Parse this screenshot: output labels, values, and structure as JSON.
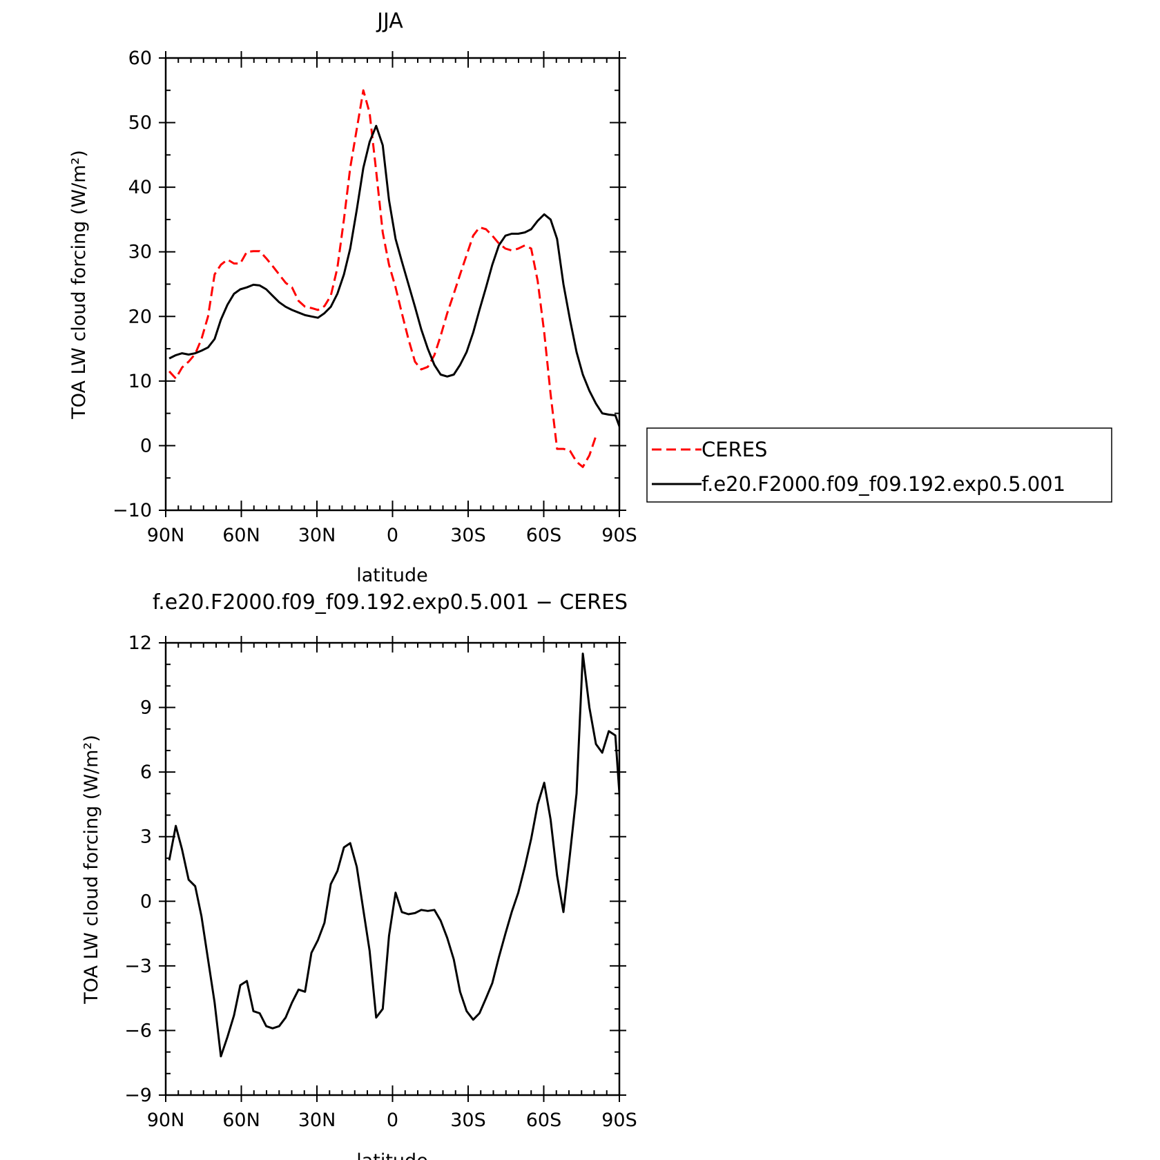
{
  "chart_data": [
    {
      "type": "line",
      "title": "JJA",
      "xlabel": "latitude",
      "ylabel": "TOA LW cloud forcing (W/m²)",
      "xlim": [
        90,
        -90
      ],
      "ylim": [
        -10,
        60
      ],
      "xticks": [
        {
          "value": 90,
          "label": "90N"
        },
        {
          "value": 60,
          "label": "60N"
        },
        {
          "value": 30,
          "label": "30N"
        },
        {
          "value": 0,
          "label": "0"
        },
        {
          "value": -30,
          "label": "30S"
        },
        {
          "value": -60,
          "label": "60S"
        },
        {
          "value": -90,
          "label": "90S"
        }
      ],
      "yticks": [
        -10,
        0,
        10,
        20,
        30,
        40,
        50,
        60
      ],
      "legend": "right",
      "series": [
        {
          "name": "CERES",
          "color": "#ff0000",
          "dash": true,
          "points": [
            [
              88.6,
              11.5
            ],
            [
              86.0,
              10.4
            ],
            [
              83.5,
              12.1
            ],
            [
              80.9,
              13.0
            ],
            [
              78.3,
              14.2
            ],
            [
              75.8,
              16.5
            ],
            [
              73.2,
              20.0
            ],
            [
              70.6,
              26.5
            ],
            [
              68.1,
              28.0
            ],
            [
              65.5,
              28.8
            ],
            [
              62.9,
              28.2
            ],
            [
              60.4,
              28.2
            ],
            [
              57.8,
              30.0
            ],
            [
              55.2,
              30.1
            ],
            [
              52.7,
              30.1
            ],
            [
              50.1,
              29.0
            ],
            [
              47.6,
              27.8
            ],
            [
              45.0,
              26.5
            ],
            [
              42.4,
              25.2
            ],
            [
              39.9,
              24.5
            ],
            [
              37.3,
              22.4
            ],
            [
              34.7,
              21.5
            ],
            [
              32.2,
              21.3
            ],
            [
              29.6,
              21.0
            ],
            [
              27.0,
              21.6
            ],
            [
              24.5,
              23.2
            ],
            [
              21.9,
              27.5
            ],
            [
              19.3,
              35.0
            ],
            [
              16.8,
              43.0
            ],
            [
              14.2,
              49.0
            ],
            [
              11.6,
              55.0
            ],
            [
              9.1,
              51.5
            ],
            [
              6.5,
              42.5
            ],
            [
              3.9,
              33.0
            ],
            [
              1.4,
              28.0
            ],
            [
              -1.2,
              24.5
            ],
            [
              -3.7,
              20.5
            ],
            [
              -6.3,
              16.5
            ],
            [
              -8.9,
              13.0
            ],
            [
              -11.4,
              11.8
            ],
            [
              -14.0,
              12.2
            ],
            [
              -16.6,
              14.0
            ],
            [
              -19.1,
              17.0
            ],
            [
              -21.7,
              20.5
            ],
            [
              -24.3,
              23.5
            ],
            [
              -26.8,
              26.5
            ],
            [
              -29.4,
              29.5
            ],
            [
              -32.0,
              32.5
            ],
            [
              -34.5,
              33.8
            ],
            [
              -37.1,
              33.5
            ],
            [
              -39.6,
              32.5
            ],
            [
              -42.2,
              31.3
            ],
            [
              -44.8,
              30.5
            ],
            [
              -47.3,
              30.2
            ],
            [
              -49.9,
              30.5
            ],
            [
              -52.5,
              31.0
            ],
            [
              -55.0,
              30.5
            ],
            [
              -57.6,
              25.5
            ],
            [
              -60.2,
              17.5
            ],
            [
              -62.7,
              8.0
            ],
            [
              -65.3,
              -0.5
            ],
            [
              -67.8,
              -0.5
            ],
            [
              -70.4,
              -0.8
            ],
            [
              -73.0,
              -2.5
            ],
            [
              -75.5,
              -3.3
            ],
            [
              -78.1,
              -1.5
            ],
            [
              -80.7,
              1.5
            ]
          ]
        },
        {
          "name": "f.e20.F2000.f09_f09.192.exp0.5.001",
          "color": "#000000",
          "dash": false,
          "points": [
            [
              88.6,
              13.5
            ],
            [
              86.0,
              14.0
            ],
            [
              83.5,
              14.3
            ],
            [
              80.9,
              14.1
            ],
            [
              78.3,
              14.3
            ],
            [
              75.8,
              14.7
            ],
            [
              73.2,
              15.2
            ],
            [
              70.6,
              16.5
            ],
            [
              68.1,
              19.5
            ],
            [
              65.5,
              21.8
            ],
            [
              62.9,
              23.5
            ],
            [
              60.4,
              24.2
            ],
            [
              57.8,
              24.5
            ],
            [
              55.2,
              24.9
            ],
            [
              52.7,
              24.8
            ],
            [
              50.1,
              24.2
            ],
            [
              47.6,
              23.2
            ],
            [
              45.0,
              22.2
            ],
            [
              42.4,
              21.5
            ],
            [
              39.9,
              21.0
            ],
            [
              37.3,
              20.6
            ],
            [
              34.7,
              20.2
            ],
            [
              32.2,
              20.0
            ],
            [
              29.6,
              19.8
            ],
            [
              27.0,
              20.5
            ],
            [
              24.5,
              21.5
            ],
            [
              21.9,
              23.5
            ],
            [
              19.3,
              26.5
            ],
            [
              16.8,
              30.5
            ],
            [
              14.2,
              36.5
            ],
            [
              11.6,
              43.0
            ],
            [
              9.1,
              47.0
            ],
            [
              6.5,
              49.5
            ],
            [
              3.9,
              46.5
            ],
            [
              1.4,
              38.0
            ],
            [
              -1.2,
              32.0
            ],
            [
              -3.7,
              28.5
            ],
            [
              -6.3,
              25.0
            ],
            [
              -8.9,
              21.5
            ],
            [
              -11.4,
              18.0
            ],
            [
              -14.0,
              15.0
            ],
            [
              -16.6,
              12.5
            ],
            [
              -19.1,
              11.0
            ],
            [
              -21.7,
              10.7
            ],
            [
              -24.3,
              11.0
            ],
            [
              -26.8,
              12.5
            ],
            [
              -29.4,
              14.5
            ],
            [
              -32.0,
              17.5
            ],
            [
              -34.5,
              21.0
            ],
            [
              -37.1,
              24.5
            ],
            [
              -39.6,
              28.0
            ],
            [
              -42.2,
              31.0
            ],
            [
              -44.8,
              32.5
            ],
            [
              -47.3,
              32.8
            ],
            [
              -49.9,
              32.8
            ],
            [
              -52.5,
              33.0
            ],
            [
              -55.0,
              33.5
            ],
            [
              -57.6,
              34.8
            ],
            [
              -60.2,
              35.8
            ],
            [
              -62.7,
              35.0
            ],
            [
              -65.3,
              32.0
            ],
            [
              -67.8,
              25.0
            ],
            [
              -70.4,
              19.5
            ],
            [
              -73.0,
              14.5
            ],
            [
              -75.5,
              11.0
            ],
            [
              -78.1,
              8.5
            ],
            [
              -80.7,
              6.5
            ],
            [
              -83.2,
              5.0
            ],
            [
              -85.8,
              4.8
            ],
            [
              -88.4,
              4.7
            ],
            [
              -90.0,
              3.0
            ],
            [
              -92.0,
              1.5
            ]
          ]
        }
      ]
    },
    {
      "type": "line",
      "title": "f.e20.F2000.f09_f09.192.exp0.5.001 − CERES",
      "xlabel": "latitude",
      "ylabel": "TOA LW cloud forcing (W/m²)",
      "xlim": [
        90,
        -90
      ],
      "ylim": [
        -9,
        12
      ],
      "xticks": [
        {
          "value": 90,
          "label": "90N"
        },
        {
          "value": 60,
          "label": "60N"
        },
        {
          "value": 30,
          "label": "30N"
        },
        {
          "value": 0,
          "label": "0"
        },
        {
          "value": -30,
          "label": "30S"
        },
        {
          "value": -60,
          "label": "60S"
        },
        {
          "value": -90,
          "label": "90S"
        }
      ],
      "yticks": [
        -9,
        -6,
        -3,
        0,
        3,
        6,
        9,
        12
      ],
      "series": [
        {
          "color": "#000000",
          "dash": false,
          "points": [
            [
              88.6,
              1.9
            ],
            [
              86.0,
              3.5
            ],
            [
              83.5,
              2.4
            ],
            [
              80.9,
              1.0
            ],
            [
              78.3,
              0.7
            ],
            [
              75.8,
              -0.7
            ],
            [
              73.2,
              -2.7
            ],
            [
              70.6,
              -4.7
            ],
            [
              68.1,
              -7.2
            ],
            [
              65.5,
              -6.3
            ],
            [
              62.9,
              -5.3
            ],
            [
              60.4,
              -3.9
            ],
            [
              57.8,
              -3.7
            ],
            [
              55.2,
              -5.1
            ],
            [
              52.7,
              -5.2
            ],
            [
              50.1,
              -5.8
            ],
            [
              47.6,
              -5.9
            ],
            [
              45.0,
              -5.8
            ],
            [
              42.4,
              -5.4
            ],
            [
              39.9,
              -4.7
            ],
            [
              37.3,
              -4.1
            ],
            [
              34.7,
              -4.2
            ],
            [
              32.2,
              -2.4
            ],
            [
              29.6,
              -1.8
            ],
            [
              27.0,
              -1.0
            ],
            [
              24.5,
              0.8
            ],
            [
              21.9,
              1.4
            ],
            [
              19.3,
              2.5
            ],
            [
              16.8,
              2.7
            ],
            [
              14.2,
              1.6
            ],
            [
              11.6,
              -0.4
            ],
            [
              9.1,
              -2.3
            ],
            [
              6.5,
              -5.4
            ],
            [
              3.9,
              -5.0
            ],
            [
              1.4,
              -1.6
            ],
            [
              -1.2,
              0.4
            ],
            [
              -3.7,
              -0.5
            ],
            [
              -6.3,
              -0.6
            ],
            [
              -8.9,
              -0.55
            ],
            [
              -11.4,
              -0.4
            ],
            [
              -14.0,
              -0.45
            ],
            [
              -16.6,
              -0.4
            ],
            [
              -19.1,
              -0.9
            ],
            [
              -21.7,
              -1.7
            ],
            [
              -24.3,
              -2.7
            ],
            [
              -26.8,
              -4.2
            ],
            [
              -29.4,
              -5.1
            ],
            [
              -32.0,
              -5.5
            ],
            [
              -34.5,
              -5.2
            ],
            [
              -37.1,
              -4.5
            ],
            [
              -39.6,
              -3.8
            ],
            [
              -42.2,
              -2.6
            ],
            [
              -44.8,
              -1.5
            ],
            [
              -47.3,
              -0.5
            ],
            [
              -49.9,
              0.4
            ],
            [
              -52.5,
              1.6
            ],
            [
              -55.0,
              2.9
            ],
            [
              -57.6,
              4.5
            ],
            [
              -60.2,
              5.5
            ],
            [
              -62.7,
              3.8
            ],
            [
              -65.3,
              1.2
            ],
            [
              -67.8,
              -0.5
            ],
            [
              -70.4,
              2.2
            ],
            [
              -73.0,
              5.0
            ],
            [
              -75.5,
              11.5
            ],
            [
              -78.1,
              9.0
            ],
            [
              -80.7,
              7.3
            ],
            [
              -83.2,
              6.9
            ],
            [
              -85.8,
              7.9
            ],
            [
              -88.4,
              7.7
            ],
            [
              -90.9,
              3.5
            ],
            [
              -93.0,
              -1.2
            ]
          ]
        }
      ]
    }
  ]
}
